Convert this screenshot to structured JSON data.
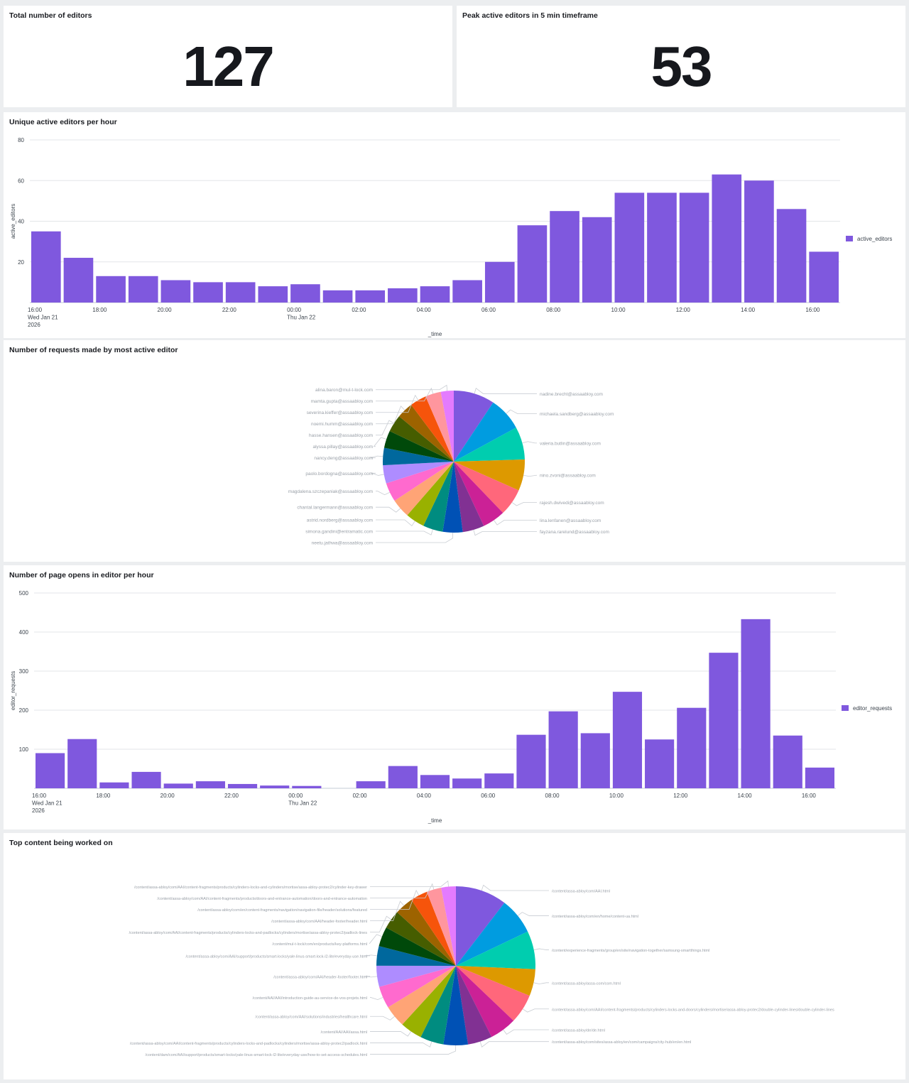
{
  "panels": {
    "total_editors": {
      "title": "Total number of editors",
      "value": "127"
    },
    "peak_editors": {
      "title": "Peak active editors in 5 min timeframe",
      "value": "53"
    },
    "active_editors": {
      "title": "Unique active editors per hour"
    },
    "requests_pie": {
      "title": "Number of requests made by most active editor"
    },
    "page_opens": {
      "title": "Number of page opens in editor per hour"
    },
    "content_pie": {
      "title": "Top content being worked on"
    }
  },
  "colors": {
    "bar": "#7f58de",
    "pie": [
      "#7f58de",
      "#009ce0",
      "#00cdaf",
      "#dd9900",
      "#ff677b",
      "#cb2196",
      "#813193",
      "#0051b5",
      "#008c80",
      "#99b100",
      "#ffa476",
      "#ff6ace",
      "#ae8cff",
      "#00689d",
      "#00490a",
      "#465d00",
      "#9d6300",
      "#f6540b",
      "#ff969e",
      "#e47bfe"
    ]
  },
  "chart_data": [
    {
      "type": "bar",
      "title": "Unique active editors per hour",
      "xlabel": "_time",
      "ylabel": "active_editors",
      "ylim": [
        0,
        80
      ],
      "yticks": [
        20,
        40,
        60,
        80
      ],
      "grid": true,
      "legend_position": "right",
      "x_tick_labels": [
        {
          "i": 0,
          "lines": [
            "16:00",
            "Wed Jan 21",
            "2026"
          ]
        },
        {
          "i": 2,
          "lines": [
            "18:00"
          ]
        },
        {
          "i": 4,
          "lines": [
            "20:00"
          ]
        },
        {
          "i": 6,
          "lines": [
            "22:00"
          ]
        },
        {
          "i": 8,
          "lines": [
            "00:00",
            "Thu Jan 22"
          ]
        },
        {
          "i": 10,
          "lines": [
            "02:00"
          ]
        },
        {
          "i": 12,
          "lines": [
            "04:00"
          ]
        },
        {
          "i": 14,
          "lines": [
            "06:00"
          ]
        },
        {
          "i": 16,
          "lines": [
            "08:00"
          ]
        },
        {
          "i": 18,
          "lines": [
            "10:00"
          ]
        },
        {
          "i": 20,
          "lines": [
            "12:00"
          ]
        },
        {
          "i": 22,
          "lines": [
            "14:00"
          ]
        },
        {
          "i": 24,
          "lines": [
            "16:00"
          ]
        }
      ],
      "series": [
        {
          "name": "active_editors",
          "values": [
            35,
            22,
            13,
            13,
            11,
            10,
            10,
            8,
            9,
            6,
            6,
            7,
            8,
            11,
            20,
            38,
            45,
            42,
            54,
            54,
            54,
            63,
            60,
            46,
            25
          ]
        }
      ]
    },
    {
      "type": "pie",
      "title": "Number of requests made by most active editor",
      "slices": [
        {
          "label": "nadine.brecht@assaabloy.com",
          "value": 9.5
        },
        {
          "label": "michaela.sandberg@assaabloy.com",
          "value": 7.8
        },
        {
          "label": "valeria.butlin@assaabloy.com",
          "value": 7.6
        },
        {
          "label": "nino.zvoni@assaabloy.com",
          "value": 7.2
        },
        {
          "label": "rajesh.dwivedi@assaabloy.com",
          "value": 6.3
        },
        {
          "label": "lina.lenfanen@assaabloy.com",
          "value": 5.3
        },
        {
          "label": "fayzana.rarelund@assaabloy.com",
          "value": 5.0
        },
        {
          "label": "neetu.jathwa@assaabloy.com",
          "value": 4.6
        },
        {
          "label": "simona.gandini@entramatic.com",
          "value": 4.6
        },
        {
          "label": "astrid.nordberg@assaabloy.com",
          "value": 4.4
        },
        {
          "label": "chantal.langermann@assaabloy.com",
          "value": 4.4
        },
        {
          "label": "magdalena.szczepaniak@assaabloy.com",
          "value": 4.4
        },
        {
          "label": "paolo.bordogna@assaabloy.com",
          "value": 4.2
        },
        {
          "label": "nancy.deng@assaabloy.com",
          "value": 4.0
        },
        {
          "label": "alyssa.pillay@assaabloy.com",
          "value": 4.0
        },
        {
          "label": "hasse.hansen@assaabloy.com",
          "value": 4.0
        },
        {
          "label": "noemi.humm@assaabloy.com",
          "value": 3.8
        },
        {
          "label": "severina.kieffer@assaabloy.com",
          "value": 3.8
        },
        {
          "label": "mamta.gupta@assaabloy.com",
          "value": 3.6
        },
        {
          "label": "alina.baron@mul-t-lock.com",
          "value": 3.0
        }
      ]
    },
    {
      "type": "bar",
      "title": "Number of page opens in editor per hour",
      "xlabel": "_time",
      "ylabel": "editor_requests",
      "ylim": [
        0,
        500
      ],
      "yticks": [
        100,
        200,
        300,
        400,
        500
      ],
      "grid": true,
      "legend_position": "right",
      "x_tick_labels": [
        {
          "i": 0,
          "lines": [
            "16:00",
            "Wed Jan 21",
            "2026"
          ]
        },
        {
          "i": 2,
          "lines": [
            "18:00"
          ]
        },
        {
          "i": 4,
          "lines": [
            "20:00"
          ]
        },
        {
          "i": 6,
          "lines": [
            "22:00"
          ]
        },
        {
          "i": 8,
          "lines": [
            "00:00",
            "Thu Jan 22"
          ]
        },
        {
          "i": 10,
          "lines": [
            "02:00"
          ]
        },
        {
          "i": 12,
          "lines": [
            "04:00"
          ]
        },
        {
          "i": 14,
          "lines": [
            "06:00"
          ]
        },
        {
          "i": 16,
          "lines": [
            "08:00"
          ]
        },
        {
          "i": 18,
          "lines": [
            "10:00"
          ]
        },
        {
          "i": 20,
          "lines": [
            "12:00"
          ]
        },
        {
          "i": 22,
          "lines": [
            "14:00"
          ]
        },
        {
          "i": 24,
          "lines": [
            "16:00"
          ]
        }
      ],
      "series": [
        {
          "name": "editor_requests",
          "values": [
            90,
            126,
            15,
            42,
            12,
            18,
            11,
            7,
            6,
            0,
            18,
            57,
            34,
            25,
            38,
            137,
            197,
            141,
            247,
            125,
            206,
            347,
            433,
            135,
            53
          ]
        }
      ]
    },
    {
      "type": "pie",
      "title": "Top content being worked on",
      "slices": [
        {
          "label": "/content/assa-abloy/com/AAI.html",
          "value": 10.5
        },
        {
          "label": "/content/assa-abloy/com/en/home/content-ua.html",
          "value": 7.5
        },
        {
          "label": "/content/experience-fragments/group/en/site/navigation-together/samsung-smartthings.html",
          "value": 7.8
        },
        {
          "label": "/content/assa-abloy/assa-com/com.html",
          "value": 5.5
        },
        {
          "label": "/content/assa-abloy/com/AAI/content-fragments/products/cylinders-locks-and-doors/cylinders/mortise/assa-abloy-protec2/double-cylinder-lines/double-cylinder-lines",
          "value": 6.0
        },
        {
          "label": "/content/assa-abloy/de/de.html",
          "value": 5.5
        },
        {
          "label": "/content/assa-abloy/com/sites/assa-abloy/en/com/campaigns/city-hub/en/en.html",
          "value": 5.0
        },
        {
          "label": "/content/dam/com/AAI/support/products/smart-locks/yale-linus-smart-lock-l2-lite/everyday-use/how-to-set-access-schedules.html",
          "value": 5.0
        },
        {
          "label": "/content/assa-abloy/com/AAI/content-fragments/products/cylinders-locks-and-padlocks/cylinders/mortise/assa-abloy-protec2/padlock.html",
          "value": 4.8
        },
        {
          "label": "/content/AAI/AAI/assa.html",
          "value": 4.5
        },
        {
          "label": "/content/assa-abloy/com/AAI/solutions/industries/healthcare.html",
          "value": 4.5
        },
        {
          "label": "/content/AAI/AAI/introduction-guide-au-service-de-vos-projets.html",
          "value": 4.5
        },
        {
          "label": "/content/assa-abloy/com/AAI/header-footer/footer.html",
          "value": 4.3
        },
        {
          "label": "/content/assa-abloy/com/AAI/support/products/smart-locks/yale-linus-smart-lock-l2-lite/everyday-use.html",
          "value": 4.0
        },
        {
          "label": "/content/mul-t-lock/com/en/products/key-platforms.html",
          "value": 4.0
        },
        {
          "label": "/content/assa-abloy/com/AAI/content-fragments/products/cylinders-locks-and-padlocks/cylinders/mortise/assa-abloy-protec2/padlock-lines",
          "value": 3.8
        },
        {
          "label": "/content/assa-abloy/com/AAI/header-footer/header.html",
          "value": 3.8
        },
        {
          "label": "/content/assa-abloy/com/en/content-fragments/navigation/navigation-file/header/solutions/featured",
          "value": 3.5
        },
        {
          "label": "/content/assa-abloy/com/AAI/content-fragments/products/doors-and-entrance-automation/doors-and-entrance-automation",
          "value": 3.0
        },
        {
          "label": "/content/assa-abloy/com/AAI/content-fragments/products/cylinders-locks-and-cylinders/mortise/assa-abloy-protec2/cylinder-key-drawer",
          "value": 3.0
        }
      ]
    }
  ]
}
